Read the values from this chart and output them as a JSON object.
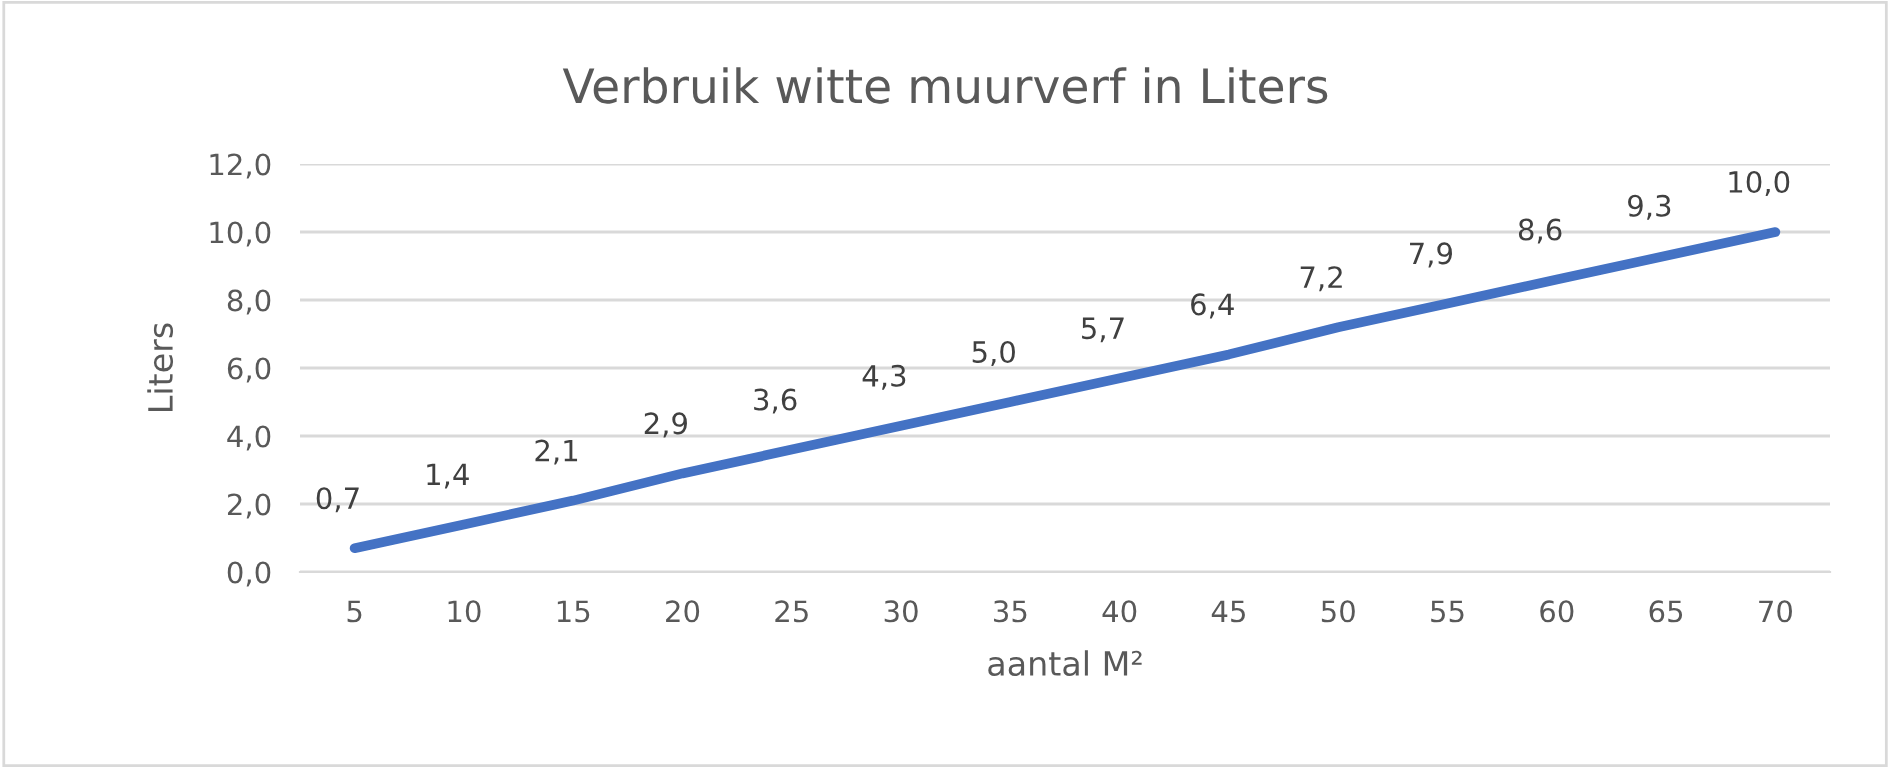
{
  "chart_data": {
    "type": "line",
    "title": "Verbruik witte muurverf in Liters",
    "xlabel": "aantal M²",
    "ylabel": "Liters",
    "categories": [
      "5",
      "10",
      "15",
      "20",
      "25",
      "30",
      "35",
      "40",
      "45",
      "50",
      "55",
      "60",
      "65",
      "70"
    ],
    "series": [
      {
        "color": "#4472c4",
        "values": [
          0.7,
          1.4,
          2.1,
          2.9,
          3.6,
          4.3,
          5.0,
          5.7,
          6.4,
          7.2,
          7.9,
          8.6,
          9.3,
          10.0
        ],
        "value_labels": [
          "0,7",
          "1,4",
          "2,1",
          "2,9",
          "3,6",
          "4,3",
          "5,0",
          "5,7",
          "6,4",
          "7,2",
          "7,9",
          "8,6",
          "9,3",
          "10,0"
        ]
      }
    ],
    "ylim": [
      0,
      12
    ],
    "yticks": [
      {
        "value": 0,
        "label": "0,0"
      },
      {
        "value": 2,
        "label": "2,0"
      },
      {
        "value": 4,
        "label": "4,0"
      },
      {
        "value": 6,
        "label": "6,0"
      },
      {
        "value": 8,
        "label": "8,0"
      },
      {
        "value": 10,
        "label": "10,0"
      },
      {
        "value": 12,
        "label": "12,0"
      }
    ],
    "grid": "y",
    "marker": "none",
    "line_style": "solid"
  }
}
